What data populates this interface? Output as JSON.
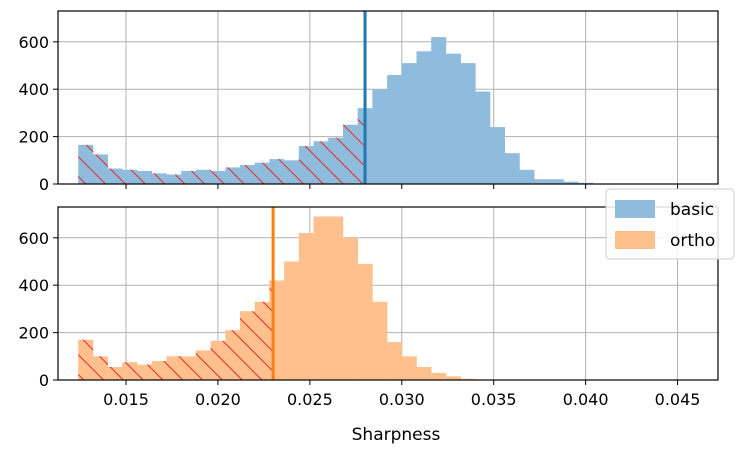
{
  "figure": {
    "xlabel": "Sharpness"
  },
  "chart_data": [
    {
      "type": "histogram",
      "panel": "top",
      "series_name": "basic",
      "color": "#8fbcdc",
      "threshold_color": "#1f77b4",
      "hatch_color": "#e8262a",
      "threshold": 0.028,
      "xlim": [
        0.0113,
        0.0472
      ],
      "ylim": [
        0,
        730
      ],
      "grid": true,
      "xticks": [
        0.015,
        0.02,
        0.025,
        0.03,
        0.035,
        0.04,
        0.045
      ],
      "yticks": [
        0,
        200,
        400,
        600
      ],
      "bin_start": 0.0124,
      "bin_width": 0.0008,
      "counts": [
        165,
        125,
        65,
        60,
        55,
        45,
        40,
        55,
        60,
        55,
        70,
        80,
        90,
        105,
        100,
        160,
        180,
        195,
        250,
        320,
        400,
        460,
        510,
        560,
        620,
        550,
        510,
        390,
        240,
        130,
        60,
        20,
        20,
        10,
        5,
        0,
        0
      ]
    },
    {
      "type": "histogram",
      "panel": "bottom",
      "series_name": "ortho",
      "color": "#ffc08d",
      "threshold_color": "#ff7f0e",
      "hatch_color": "#e8262a",
      "threshold": 0.023,
      "xlim": [
        0.0113,
        0.0472
      ],
      "ylim": [
        0,
        730
      ],
      "grid": true,
      "xticks": [
        0.015,
        0.02,
        0.025,
        0.03,
        0.035,
        0.04,
        0.045
      ],
      "yticks": [
        0,
        200,
        400,
        600
      ],
      "bin_start": 0.0124,
      "bin_width": 0.0008,
      "counts": [
        170,
        100,
        55,
        75,
        65,
        80,
        100,
        100,
        125,
        165,
        210,
        290,
        330,
        420,
        500,
        620,
        690,
        690,
        600,
        490,
        330,
        160,
        100,
        55,
        30,
        15,
        5,
        0,
        0,
        0,
        0,
        0,
        0,
        0,
        0,
        0,
        0
      ]
    }
  ],
  "legend": {
    "placement": "right, between panels",
    "entries": [
      {
        "label": "basic",
        "color": "#8fbcdc"
      },
      {
        "label": "ortho",
        "color": "#ffc08d"
      }
    ]
  }
}
